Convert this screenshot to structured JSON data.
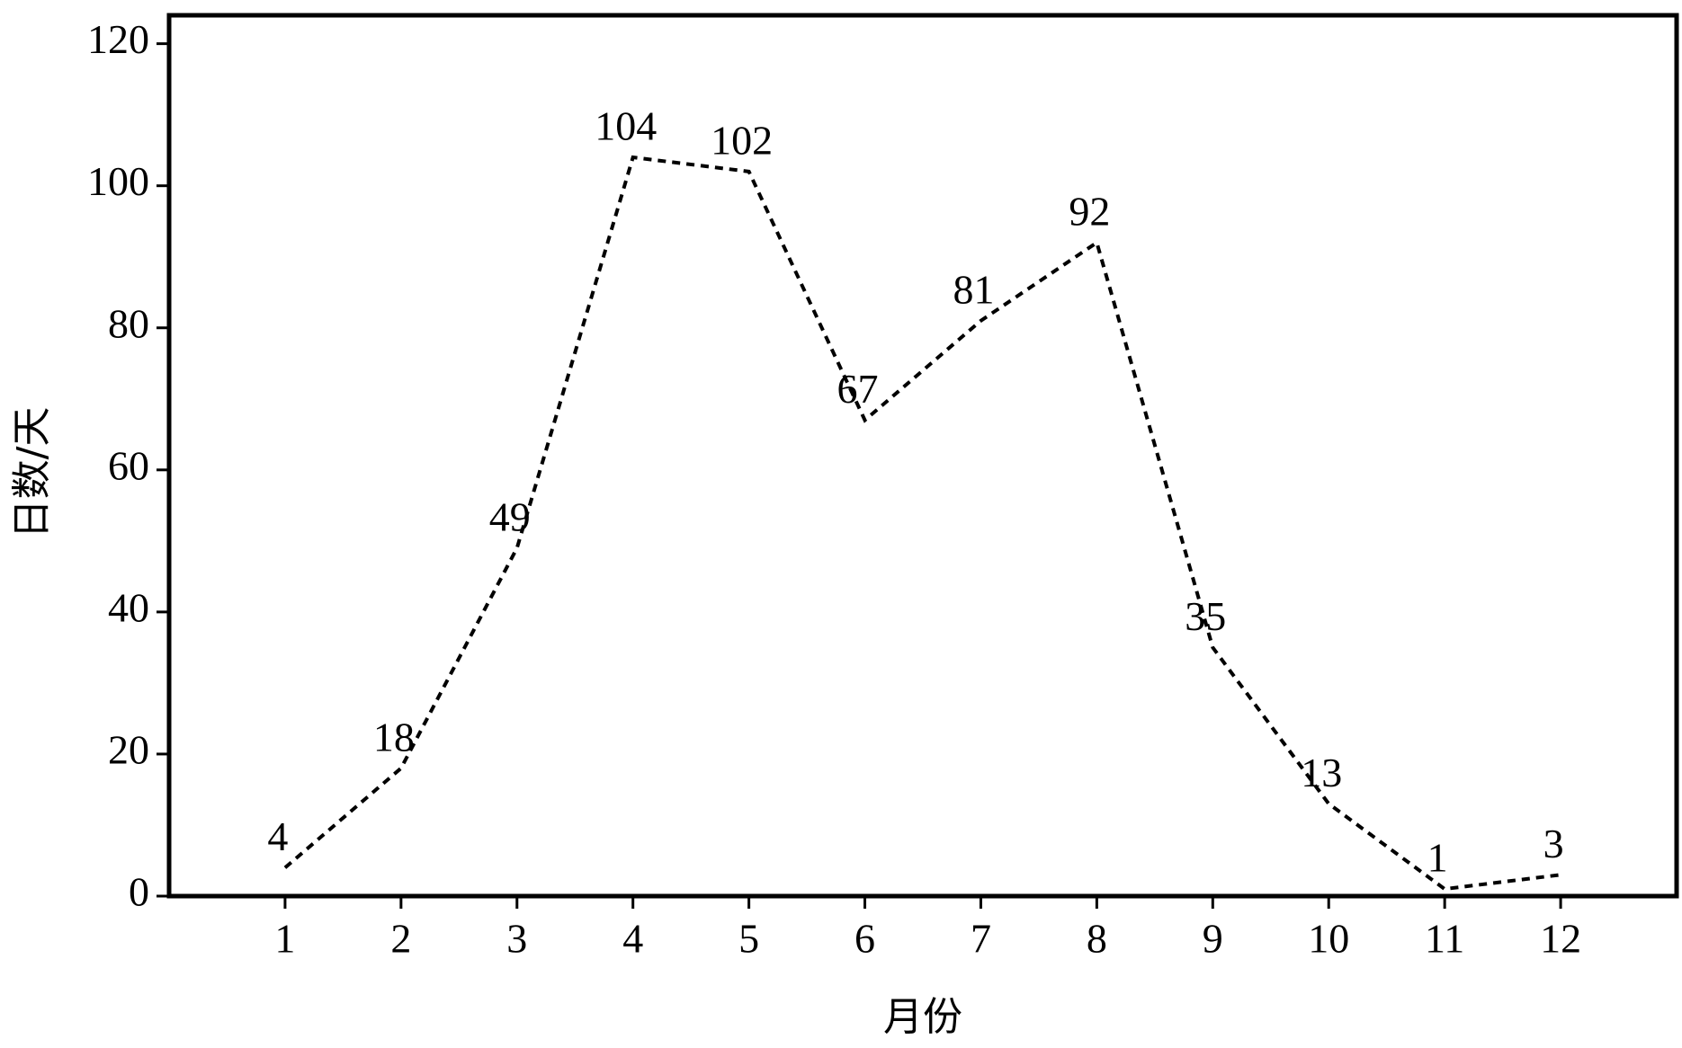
{
  "chart_data": {
    "type": "line",
    "x_label": "月份",
    "y_label": "日数/天",
    "x": [
      1,
      2,
      3,
      4,
      5,
      6,
      7,
      8,
      9,
      10,
      11,
      12
    ],
    "y": [
      4,
      18,
      49,
      104,
      102,
      67,
      81,
      92,
      35,
      13,
      1,
      3
    ],
    "color": "#000000",
    "line_style": "dashed",
    "xlim": [
      0,
      13
    ],
    "ylim": [
      0,
      124
    ],
    "xticks": [
      1,
      2,
      3,
      4,
      5,
      6,
      7,
      8,
      9,
      10,
      11,
      12
    ],
    "yticks": [
      0,
      20,
      40,
      60,
      80,
      100,
      120
    ],
    "grid": false
  }
}
